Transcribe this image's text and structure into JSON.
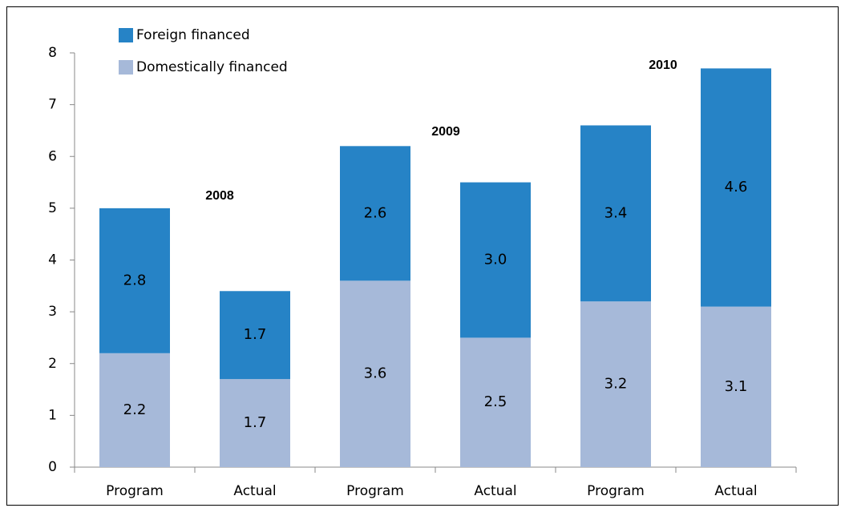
{
  "chart_data": {
    "type": "stacked_bar",
    "categories": [
      "Program",
      "Actual",
      "Program",
      "Actual",
      "Program",
      "Actual"
    ],
    "series": [
      {
        "name": "Domestically financed",
        "color": "#a6b9d9",
        "values": [
          2.2,
          1.7,
          3.6,
          2.5,
          3.2,
          3.1
        ],
        "value_labels": [
          "2.2",
          "1.7",
          "3.6",
          "2.5",
          "3.2",
          "3.1"
        ]
      },
      {
        "name": "Foreign financed",
        "color": "#2683c6",
        "values": [
          2.8,
          1.7,
          2.6,
          3.0,
          3.4,
          4.6
        ],
        "value_labels": [
          "2.8",
          "1.7",
          "2.6",
          "3.0",
          "3.4",
          "4.6"
        ]
      }
    ],
    "annotations": [
      "2008",
      "2009",
      "2010"
    ],
    "ylim": [
      0,
      8
    ],
    "yticks": [
      0,
      1,
      2,
      3,
      4,
      5,
      6,
      7,
      8
    ]
  }
}
